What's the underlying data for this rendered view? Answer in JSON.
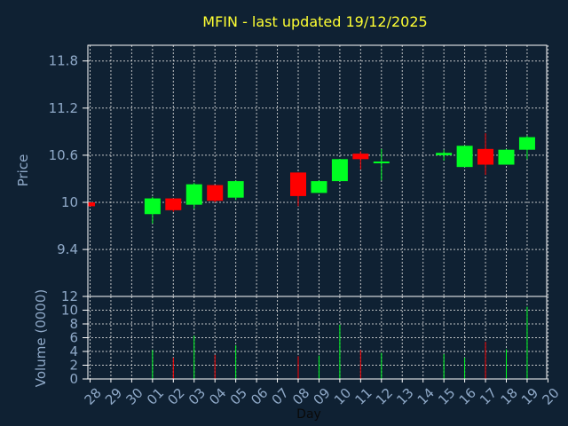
{
  "colors": {
    "background": "#0f2133",
    "frame": "#ffffff",
    "grid": "#dddddd",
    "up": "#00ff22",
    "down": "#ff0000",
    "text": "#8fa9c8",
    "title": "#ffff33"
  },
  "chart_data": [
    {
      "type": "candlestick",
      "title": "MFIN - last updated 19/12/2025",
      "ylabel": "Price",
      "ylim": [
        9.0,
        12.0
      ],
      "yticks": [
        "11.8",
        "11.2",
        "10.6",
        "10",
        "9.4"
      ],
      "ytick_values": [
        11.8,
        11.2,
        10.6,
        10.0,
        9.4
      ],
      "grid": true,
      "x": [
        "28",
        "29",
        "30",
        "01",
        "02",
        "03",
        "04",
        "05",
        "06",
        "07",
        "08",
        "09",
        "10",
        "11",
        "12",
        "13",
        "14",
        "15",
        "16",
        "17",
        "18",
        "19",
        "20"
      ],
      "candles": [
        {
          "day": "28",
          "open": 10.0,
          "high": 10.0,
          "low": 9.95,
          "close": 9.95
        },
        {
          "day": "01",
          "open": 9.85,
          "high": 10.07,
          "low": 9.73,
          "close": 10.05
        },
        {
          "day": "02",
          "open": 10.05,
          "high": 10.05,
          "low": 9.88,
          "close": 9.9
        },
        {
          "day": "03",
          "open": 9.97,
          "high": 10.25,
          "low": 9.92,
          "close": 10.23
        },
        {
          "day": "04",
          "open": 10.22,
          "high": 10.22,
          "low": 10.0,
          "close": 10.02
        },
        {
          "day": "05",
          "open": 10.06,
          "high": 10.28,
          "low": 10.03,
          "close": 10.27
        },
        {
          "day": "08",
          "open": 10.38,
          "high": 10.38,
          "low": 9.95,
          "close": 10.08
        },
        {
          "day": "09",
          "open": 10.12,
          "high": 10.28,
          "low": 10.12,
          "close": 10.27
        },
        {
          "day": "10",
          "open": 10.27,
          "high": 10.55,
          "low": 10.27,
          "close": 10.55
        },
        {
          "day": "11",
          "open": 10.62,
          "high": 10.65,
          "low": 10.42,
          "close": 10.55
        },
        {
          "day": "12",
          "open": 10.5,
          "high": 10.68,
          "low": 10.28,
          "close": 10.52
        },
        {
          "day": "15",
          "open": 10.6,
          "high": 10.67,
          "low": 10.53,
          "close": 10.63
        },
        {
          "day": "16",
          "open": 10.45,
          "high": 10.72,
          "low": 10.45,
          "close": 10.72
        },
        {
          "day": "17",
          "open": 10.68,
          "high": 10.88,
          "low": 10.35,
          "close": 10.48
        },
        {
          "day": "18",
          "open": 10.48,
          "high": 10.68,
          "low": 10.48,
          "close": 10.67
        },
        {
          "day": "19",
          "open": 10.67,
          "high": 10.85,
          "low": 10.55,
          "close": 10.83
        }
      ]
    },
    {
      "type": "bar",
      "ylabel": "Volume (0000)",
      "xlabel": "Day",
      "ylim": [
        0,
        12
      ],
      "yticks": [
        "12",
        "10",
        "8",
        "6",
        "4",
        "2",
        "0"
      ],
      "ytick_values": [
        12,
        10,
        8,
        6,
        4,
        2,
        0
      ],
      "grid": true,
      "x": [
        "28",
        "29",
        "30",
        "01",
        "02",
        "03",
        "04",
        "05",
        "06",
        "07",
        "08",
        "09",
        "10",
        "11",
        "12",
        "13",
        "14",
        "15",
        "16",
        "17",
        "18",
        "19",
        "20"
      ],
      "bars": [
        {
          "day": "01",
          "value": 4.2,
          "direction": "up"
        },
        {
          "day": "02",
          "value": 3.1,
          "direction": "down"
        },
        {
          "day": "03",
          "value": 6.3,
          "direction": "up"
        },
        {
          "day": "04",
          "value": 3.5,
          "direction": "down"
        },
        {
          "day": "05",
          "value": 4.9,
          "direction": "up"
        },
        {
          "day": "08",
          "value": 3.3,
          "direction": "down"
        },
        {
          "day": "09",
          "value": 3.4,
          "direction": "up"
        },
        {
          "day": "10",
          "value": 7.9,
          "direction": "up"
        },
        {
          "day": "11",
          "value": 4.2,
          "direction": "down"
        },
        {
          "day": "12",
          "value": 3.8,
          "direction": "up"
        },
        {
          "day": "15",
          "value": 3.6,
          "direction": "up"
        },
        {
          "day": "16",
          "value": 3.1,
          "direction": "up"
        },
        {
          "day": "17",
          "value": 5.4,
          "direction": "down"
        },
        {
          "day": "18",
          "value": 4.3,
          "direction": "up"
        },
        {
          "day": "19",
          "value": 10.5,
          "direction": "up"
        }
      ]
    }
  ]
}
